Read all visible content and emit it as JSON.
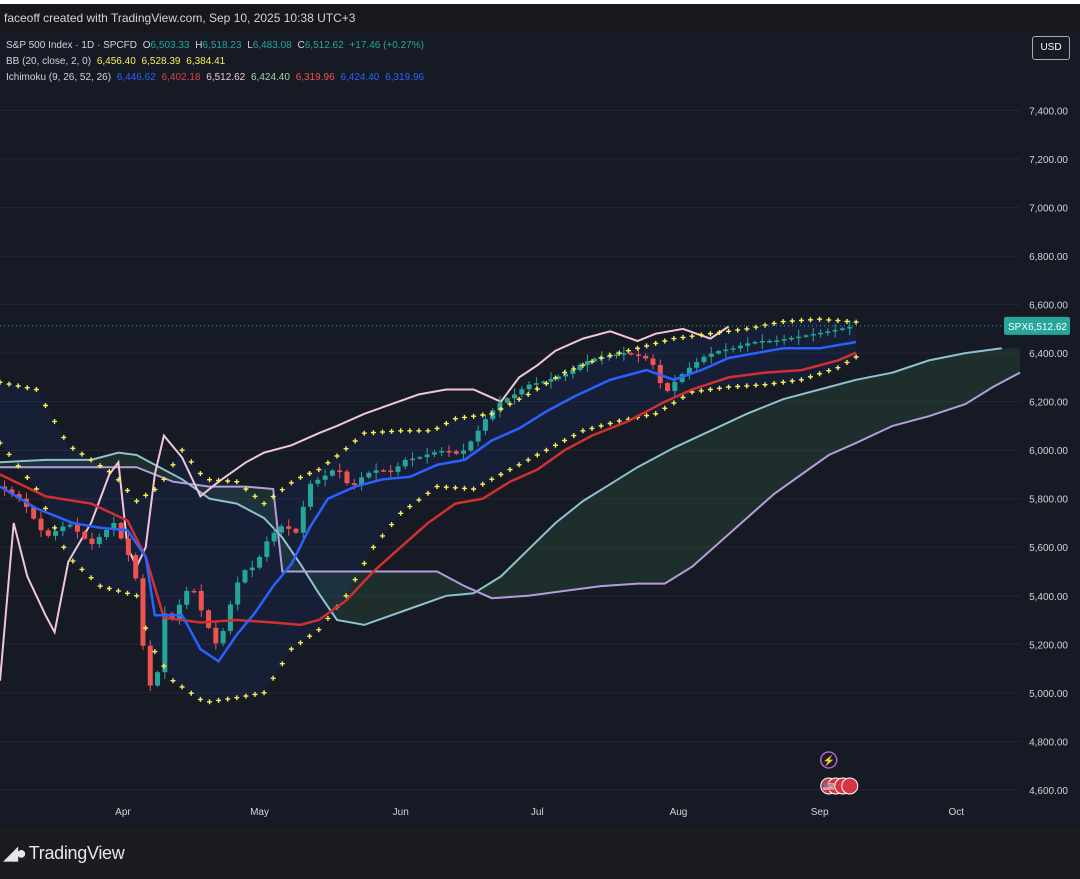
{
  "header": {
    "caption": "faceoff created with TradingView.com, Sep 10, 2025 10:38 UTC+3"
  },
  "legend": {
    "symbol": "S&P 500 Index · 1D · SPCFD",
    "ohlc": {
      "o_key": "O",
      "o": "6,503.33",
      "h_key": "H",
      "h": "6,518.23",
      "l_key": "L",
      "l": "6,483.08",
      "c_key": "C",
      "c": "6,512.62",
      "change": "+17.46 (+0.27%)"
    },
    "bb": {
      "label": "BB (20, close, 2, 0)",
      "v1": "6,456.40",
      "v2": "6,528.39",
      "v3": "6,384.41"
    },
    "ichimoku": {
      "label": "Ichimoku (9, 26, 52, 26)",
      "v1": "6,446.62",
      "v2": "6,402.18",
      "v3": "6,512.62",
      "v4": "6,424.40",
      "v5": "6,319.96",
      "v6": "6,424.40",
      "v7": "6,319.96"
    },
    "currency": "USD"
  },
  "footer": {
    "brand": "TradingView"
  },
  "colors": {
    "background": "#161a25",
    "up": "#26a69a",
    "down": "#ef5350",
    "bb_band": "#f6ef5a",
    "conversion": "#2962ff",
    "base": "#d32f2f",
    "lagging": "#f1c6d6",
    "lead_a": "#8fc1cf",
    "lead_b": "#b39ddb",
    "price_line": "#26a69a"
  },
  "chart_data": {
    "type": "candlestick",
    "title": "S&P 500 Index · 1D · SPCFD",
    "ylim": [
      4550,
      7600
    ],
    "y_ticks": [
      4600,
      4800,
      5000,
      5200,
      5400,
      5600,
      5800,
      6000,
      6200,
      6400,
      6600,
      6800,
      7000,
      7200,
      7400
    ],
    "y_tick_labels": [
      "4,600.00",
      "4,800.00",
      "5,000.00",
      "5,200.00",
      "5,400.00",
      "5,600.00",
      "5,800.00",
      "6,000.00",
      "6,200.00",
      "6,400.00",
      "6,600.00",
      "6,800.00",
      "7,000.00",
      "7,200.00",
      "7,400.00"
    ],
    "x_axis": "days from start of view (Mar 5 = 0)",
    "x_range": [
      0,
      224
    ],
    "x_ticks": [
      {
        "day": 27,
        "label": "Apr"
      },
      {
        "day": 57,
        "label": "May"
      },
      {
        "day": 88,
        "label": "Jun"
      },
      {
        "day": 118,
        "label": "Jul"
      },
      {
        "day": 149,
        "label": "Aug"
      },
      {
        "day": 180,
        "label": "Sep"
      },
      {
        "day": 210,
        "label": "Oct"
      }
    ],
    "last_price": {
      "label": "SPX",
      "value": 6512.62,
      "text": "6,512.62"
    },
    "event_badges": [
      "⚡",
      "🇺🇸"
    ],
    "price_series": [
      [
        0,
        5850
      ],
      [
        5,
        5790
      ],
      [
        10,
        5640
      ],
      [
        15,
        5700
      ],
      [
        20,
        5610
      ],
      [
        25,
        5700
      ],
      [
        28,
        5580
      ],
      [
        30,
        5460
      ],
      [
        32,
        5080
      ],
      [
        34,
        4980
      ],
      [
        36,
        5330
      ],
      [
        38,
        5300
      ],
      [
        40,
        5390
      ],
      [
        42,
        5450
      ],
      [
        45,
        5300
      ],
      [
        48,
        5180
      ],
      [
        50,
        5330
      ],
      [
        53,
        5500
      ],
      [
        56,
        5520
      ],
      [
        59,
        5640
      ],
      [
        62,
        5690
      ],
      [
        65,
        5660
      ],
      [
        68,
        5860
      ],
      [
        71,
        5890
      ],
      [
        74,
        5930
      ],
      [
        77,
        5840
      ],
      [
        80,
        5900
      ],
      [
        83,
        5920
      ],
      [
        86,
        5910
      ],
      [
        89,
        5960
      ],
      [
        92,
        5970
      ],
      [
        95,
        5990
      ],
      [
        98,
        6000
      ],
      [
        101,
        5980
      ],
      [
        104,
        6050
      ],
      [
        107,
        6140
      ],
      [
        110,
        6200
      ],
      [
        113,
        6230
      ],
      [
        116,
        6270
      ],
      [
        119,
        6280
      ],
      [
        122,
        6300
      ],
      [
        125,
        6320
      ],
      [
        128,
        6360
      ],
      [
        131,
        6380
      ],
      [
        134,
        6390
      ],
      [
        137,
        6400
      ],
      [
        140,
        6390
      ],
      [
        143,
        6370
      ],
      [
        146,
        6230
      ],
      [
        149,
        6300
      ],
      [
        152,
        6350
      ],
      [
        155,
        6390
      ],
      [
        158,
        6410
      ],
      [
        161,
        6420
      ],
      [
        164,
        6440
      ],
      [
        167,
        6450
      ],
      [
        170,
        6450
      ],
      [
        173,
        6460
      ],
      [
        176,
        6470
      ],
      [
        179,
        6480
      ],
      [
        182,
        6490
      ],
      [
        185,
        6502
      ],
      [
        188,
        6512.62
      ]
    ],
    "series": [
      {
        "name": "BB Upper",
        "values": [
          [
            0,
            6280
          ],
          [
            8,
            6250
          ],
          [
            15,
            6020
          ],
          [
            25,
            5900
          ],
          [
            30,
            5790
          ],
          [
            35,
            5850
          ],
          [
            40,
            6000
          ],
          [
            45,
            5880
          ],
          [
            52,
            5870
          ],
          [
            58,
            5780
          ],
          [
            65,
            5880
          ],
          [
            70,
            5920
          ],
          [
            75,
            5990
          ],
          [
            80,
            6070
          ],
          [
            88,
            6080
          ],
          [
            95,
            6080
          ],
          [
            100,
            6130
          ],
          [
            108,
            6150
          ],
          [
            116,
            6230
          ],
          [
            124,
            6320
          ],
          [
            132,
            6380
          ],
          [
            140,
            6420
          ],
          [
            148,
            6460
          ],
          [
            156,
            6480
          ],
          [
            164,
            6500
          ],
          [
            172,
            6530
          ],
          [
            180,
            6540
          ],
          [
            188,
            6528
          ]
        ]
      },
      {
        "name": "BB Lower",
        "values": [
          [
            0,
            6030
          ],
          [
            8,
            5840
          ],
          [
            15,
            5560
          ],
          [
            22,
            5440
          ],
          [
            30,
            5400
          ],
          [
            33,
            5200
          ],
          [
            38,
            5050
          ],
          [
            45,
            4960
          ],
          [
            52,
            4980
          ],
          [
            58,
            5000
          ],
          [
            64,
            5180
          ],
          [
            70,
            5260
          ],
          [
            76,
            5400
          ],
          [
            82,
            5600
          ],
          [
            88,
            5740
          ],
          [
            96,
            5850
          ],
          [
            104,
            5840
          ],
          [
            112,
            5920
          ],
          [
            120,
            6000
          ],
          [
            128,
            6080
          ],
          [
            136,
            6120
          ],
          [
            144,
            6150
          ],
          [
            152,
            6240
          ],
          [
            160,
            6260
          ],
          [
            168,
            6270
          ],
          [
            176,
            6290
          ],
          [
            184,
            6340
          ],
          [
            188,
            6384
          ]
        ]
      },
      {
        "name": "Conversion Line",
        "values": [
          [
            0,
            5850
          ],
          [
            8,
            5760
          ],
          [
            16,
            5700
          ],
          [
            22,
            5680
          ],
          [
            28,
            5670
          ],
          [
            32,
            5560
          ],
          [
            34,
            5320
          ],
          [
            40,
            5320
          ],
          [
            44,
            5180
          ],
          [
            48,
            5130
          ],
          [
            52,
            5240
          ],
          [
            56,
            5330
          ],
          [
            60,
            5440
          ],
          [
            64,
            5530
          ],
          [
            68,
            5680
          ],
          [
            72,
            5800
          ],
          [
            78,
            5850
          ],
          [
            84,
            5880
          ],
          [
            90,
            5890
          ],
          [
            96,
            5940
          ],
          [
            102,
            5960
          ],
          [
            108,
            6040
          ],
          [
            114,
            6090
          ],
          [
            120,
            6160
          ],
          [
            126,
            6220
          ],
          [
            134,
            6290
          ],
          [
            142,
            6330
          ],
          [
            148,
            6290
          ],
          [
            154,
            6330
          ],
          [
            160,
            6380
          ],
          [
            166,
            6400
          ],
          [
            172,
            6420
          ],
          [
            180,
            6420
          ],
          [
            188,
            6446
          ]
        ]
      },
      {
        "name": "Base Line",
        "values": [
          [
            0,
            5900
          ],
          [
            10,
            5810
          ],
          [
            20,
            5780
          ],
          [
            28,
            5710
          ],
          [
            32,
            5560
          ],
          [
            36,
            5310
          ],
          [
            44,
            5290
          ],
          [
            52,
            5300
          ],
          [
            60,
            5290
          ],
          [
            66,
            5280
          ],
          [
            70,
            5300
          ],
          [
            76,
            5380
          ],
          [
            82,
            5500
          ],
          [
            88,
            5600
          ],
          [
            94,
            5700
          ],
          [
            100,
            5780
          ],
          [
            106,
            5800
          ],
          [
            112,
            5870
          ],
          [
            118,
            5920
          ],
          [
            124,
            6000
          ],
          [
            130,
            6060
          ],
          [
            138,
            6120
          ],
          [
            146,
            6200
          ],
          [
            152,
            6250
          ],
          [
            160,
            6300
          ],
          [
            168,
            6320
          ],
          [
            176,
            6330
          ],
          [
            184,
            6370
          ],
          [
            188,
            6402
          ]
        ]
      },
      {
        "name": "Lagging Span",
        "values": [
          [
            0,
            5050
          ],
          [
            3,
            5700
          ],
          [
            6,
            5480
          ],
          [
            10,
            5320
          ],
          [
            12,
            5250
          ],
          [
            15,
            5540
          ],
          [
            20,
            5700
          ],
          [
            24,
            5900
          ],
          [
            26,
            5950
          ],
          [
            28,
            5600
          ],
          [
            30,
            5520
          ],
          [
            32,
            5600
          ],
          [
            34,
            5900
          ],
          [
            36,
            6060
          ],
          [
            40,
            5970
          ],
          [
            44,
            5810
          ],
          [
            48,
            5870
          ],
          [
            54,
            5950
          ],
          [
            58,
            5990
          ],
          [
            64,
            6020
          ],
          [
            70,
            6070
          ],
          [
            74,
            6100
          ],
          [
            80,
            6150
          ],
          [
            86,
            6190
          ],
          [
            92,
            6230
          ],
          [
            98,
            6250
          ],
          [
            104,
            6250
          ],
          [
            110,
            6200
          ],
          [
            114,
            6300
          ],
          [
            118,
            6350
          ],
          [
            122,
            6410
          ],
          [
            128,
            6460
          ],
          [
            134,
            6490
          ],
          [
            140,
            6450
          ],
          [
            144,
            6480
          ],
          [
            150,
            6500
          ],
          [
            156,
            6460
          ],
          [
            160,
            6510
          ]
        ]
      },
      {
        "name": "Leading Span A",
        "values": [
          [
            0,
            5950
          ],
          [
            10,
            5960
          ],
          [
            20,
            5960
          ],
          [
            26,
            5990
          ],
          [
            30,
            5980
          ],
          [
            34,
            5940
          ],
          [
            40,
            5880
          ],
          [
            46,
            5800
          ],
          [
            52,
            5780
          ],
          [
            58,
            5720
          ],
          [
            62,
            5640
          ],
          [
            66,
            5530
          ],
          [
            70,
            5410
          ],
          [
            74,
            5300
          ],
          [
            80,
            5280
          ],
          [
            86,
            5320
          ],
          [
            92,
            5360
          ],
          [
            98,
            5400
          ],
          [
            104,
            5410
          ],
          [
            110,
            5480
          ],
          [
            116,
            5590
          ],
          [
            122,
            5700
          ],
          [
            128,
            5790
          ],
          [
            134,
            5860
          ],
          [
            140,
            5930
          ],
          [
            148,
            6010
          ],
          [
            156,
            6080
          ],
          [
            164,
            6150
          ],
          [
            172,
            6210
          ],
          [
            180,
            6250
          ],
          [
            188,
            6290
          ],
          [
            196,
            6320
          ],
          [
            204,
            6370
          ],
          [
            212,
            6400
          ],
          [
            220,
            6420
          ]
        ]
      },
      {
        "name": "Leading Span B",
        "values": [
          [
            0,
            5930
          ],
          [
            12,
            5930
          ],
          [
            22,
            5930
          ],
          [
            30,
            5930
          ],
          [
            38,
            5870
          ],
          [
            46,
            5850
          ],
          [
            54,
            5850
          ],
          [
            60,
            5840
          ],
          [
            62,
            5500
          ],
          [
            66,
            5500
          ],
          [
            72,
            5500
          ],
          [
            80,
            5500
          ],
          [
            88,
            5500
          ],
          [
            96,
            5500
          ],
          [
            102,
            5440
          ],
          [
            108,
            5390
          ],
          [
            116,
            5400
          ],
          [
            124,
            5420
          ],
          [
            132,
            5440
          ],
          [
            140,
            5450
          ],
          [
            146,
            5450
          ],
          [
            152,
            5520
          ],
          [
            158,
            5620
          ],
          [
            164,
            5720
          ],
          [
            170,
            5820
          ],
          [
            176,
            5900
          ],
          [
            182,
            5980
          ],
          [
            188,
            6030
          ],
          [
            196,
            6100
          ],
          [
            204,
            6140
          ],
          [
            212,
            6190
          ],
          [
            218,
            6260
          ],
          [
            224,
            6320
          ]
        ]
      }
    ]
  }
}
